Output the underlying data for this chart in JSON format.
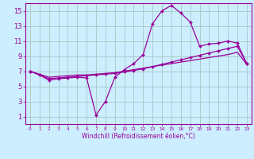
{
  "xlabel": "Windchill (Refroidissement éolien,°C)",
  "background_color": "#cceeff",
  "grid_color": "#aacccc",
  "line_color": "#990099",
  "x_data": [
    0,
    1,
    2,
    3,
    4,
    5,
    6,
    7,
    8,
    9,
    10,
    11,
    12,
    13,
    14,
    15,
    16,
    17,
    18,
    19,
    20,
    21,
    22,
    23
  ],
  "y_main": [
    7.0,
    6.5,
    5.8,
    6.0,
    6.1,
    6.2,
    6.1,
    1.2,
    3.0,
    6.2,
    7.2,
    8.0,
    9.2,
    13.3,
    15.0,
    15.7,
    14.7,
    13.5,
    10.3,
    10.6,
    10.7,
    11.0,
    10.7,
    8.0
  ],
  "y_line2": [
    7.0,
    6.5,
    6.0,
    6.1,
    6.2,
    6.3,
    6.4,
    6.5,
    6.6,
    6.7,
    6.9,
    7.1,
    7.3,
    7.6,
    7.9,
    8.2,
    8.5,
    8.8,
    9.1,
    9.4,
    9.7,
    10.0,
    10.3,
    8.0
  ],
  "y_line3": [
    7.0,
    6.6,
    6.2,
    6.3,
    6.4,
    6.5,
    6.5,
    6.6,
    6.7,
    6.8,
    7.0,
    7.2,
    7.4,
    7.6,
    7.8,
    8.0,
    8.2,
    8.4,
    8.6,
    8.8,
    9.0,
    9.2,
    9.5,
    7.9
  ],
  "ylim": [
    0,
    16
  ],
  "xlim": [
    -0.5,
    23.5
  ],
  "yticks": [
    1,
    3,
    5,
    7,
    9,
    11,
    13,
    15
  ],
  "xticks": [
    0,
    1,
    2,
    3,
    4,
    5,
    6,
    7,
    8,
    9,
    10,
    11,
    12,
    13,
    14,
    15,
    16,
    17,
    18,
    19,
    20,
    21,
    22,
    23
  ],
  "xtick_labels": [
    "0",
    "1",
    "2",
    "3",
    "4",
    "5",
    "6",
    "7",
    "8",
    "9",
    "10",
    "11",
    "12",
    "13",
    "14",
    "15",
    "16",
    "17",
    "18",
    "19",
    "20",
    "21",
    "22",
    "23"
  ],
  "xlabel_fontsize": 5.5,
  "ytick_fontsize": 6,
  "xtick_fontsize": 4.2
}
